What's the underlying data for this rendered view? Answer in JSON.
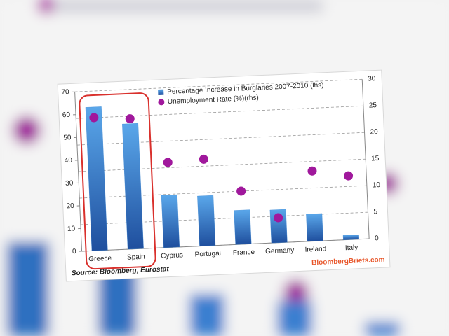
{
  "chart_data": {
    "type": "bar",
    "categories": [
      "Greece",
      "Spain",
      "Cyprus",
      "Portugal",
      "France",
      "Germany",
      "Ireland",
      "Italy"
    ],
    "series": [
      {
        "name": "Percentage Increase in Burglaries 2007-2010 (lhs)",
        "type": "bar",
        "color": "#2f7fd0",
        "values": [
          63,
          55,
          23,
          22,
          15,
          14.5,
          12,
          2
        ]
      },
      {
        "name": "Unemployment Rate (%)(rhs)",
        "type": "scatter",
        "axis": "y2",
        "color": "#a0189c",
        "values": [
          25,
          24.5,
          16,
          16.3,
          10,
          4.7,
          13.2,
          12
        ]
      }
    ],
    "ylim": [
      0,
      70
    ],
    "yticks": [
      0,
      10,
      20,
      30,
      40,
      50,
      60,
      70
    ],
    "y2lim": [
      0,
      30
    ],
    "y2ticks": [
      0,
      5,
      10,
      15,
      20,
      25,
      30
    ],
    "grid": true,
    "source": "Source: Bloomberg, Eurostat",
    "watermark": "BloombergBriefs.com"
  }
}
